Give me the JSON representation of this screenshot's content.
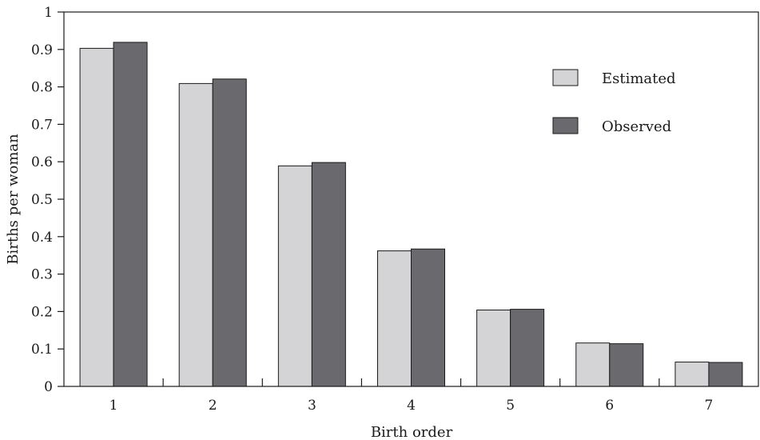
{
  "chart_data": {
    "type": "bar",
    "xlabel": "Birth order",
    "ylabel": "Births per woman",
    "categories": [
      "1",
      "2",
      "3",
      "4",
      "5",
      "6",
      "7"
    ],
    "yticks": [
      "0",
      "0.1",
      "0.2",
      "0.3",
      "0.4",
      "0.5",
      "0.6",
      "0.7",
      "0.8",
      "0.9",
      "1"
    ],
    "ylim": [
      0,
      1
    ],
    "legend_position": "top-right",
    "series": [
      {
        "name": "Estimated",
        "values": [
          0.903,
          0.809,
          0.589,
          0.362,
          0.204,
          0.116,
          0.065
        ],
        "color": "#d4d4d6"
      },
      {
        "name": "Observed",
        "values": [
          0.919,
          0.821,
          0.598,
          0.367,
          0.206,
          0.114,
          0.064
        ],
        "color": "#6a6a6e"
      }
    ]
  }
}
